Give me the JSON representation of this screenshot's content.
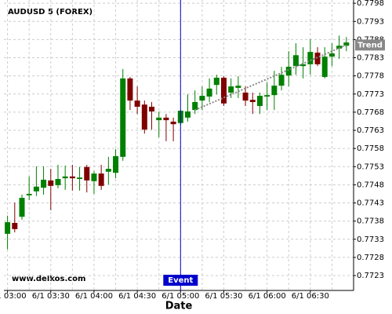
{
  "chart_data": {
    "type": "candlestick",
    "title": "AUDUSD 5 (FOREX)",
    "watermark": "www.delkos.com",
    "x_label": "Date",
    "categories": [
      "6/1 03:00",
      null,
      null,
      null,
      null,
      null,
      "6/1 03:30",
      null,
      null,
      null,
      null,
      null,
      "6/1 04:00",
      null,
      null,
      null,
      null,
      null,
      "6/1 04:30",
      null,
      null,
      null,
      null,
      null,
      "6/1 05:00",
      null,
      null,
      null,
      null,
      null,
      "6/1 05:30",
      null,
      null,
      null,
      null,
      null,
      "6/1 06:00",
      null,
      null,
      null,
      null,
      null,
      "6/1 06:30",
      null,
      null,
      null,
      null,
      null
    ],
    "open": [
      0.77345,
      0.77375,
      0.77392,
      0.77451,
      0.77462,
      0.77472,
      0.77492,
      0.77479,
      0.77498,
      0.77503,
      0.77496,
      0.77529,
      0.7749,
      0.77511,
      0.77516,
      0.77513,
      0.77557,
      0.77773,
      0.77712,
      0.77701,
      0.77695,
      0.77658,
      0.77665,
      0.77654,
      0.7765,
      0.77665,
      0.77686,
      0.77712,
      0.77723,
      0.77755,
      0.77775,
      0.77734,
      0.77747,
      0.77734,
      0.77714,
      0.77697,
      0.77723,
      0.77727,
      0.77753,
      0.77781,
      0.77807,
      0.77807,
      0.77812,
      0.77844,
      0.77777,
      0.77833,
      0.77855,
      0.77863
    ],
    "high": [
      0.77395,
      0.77431,
      0.77453,
      0.77503,
      0.77531,
      0.77531,
      0.77524,
      0.77535,
      0.77533,
      0.77535,
      0.77529,
      0.77535,
      0.77518,
      0.77535,
      0.77557,
      0.77578,
      0.77799,
      0.77777,
      0.77751,
      0.77712,
      0.77708,
      0.77682,
      0.77675,
      0.77665,
      0.77686,
      0.77729,
      0.7774,
      0.77751,
      0.77773,
      0.77783,
      0.77779,
      0.77773,
      0.77779,
      0.77751,
      0.77734,
      0.77734,
      0.77762,
      0.77794,
      0.77805,
      0.77848,
      0.7787,
      0.77859,
      0.77881,
      0.77859,
      0.77859,
      0.7787,
      0.77891,
      0.77887
    ],
    "low": [
      0.77302,
      0.77349,
      0.77384,
      0.77438,
      0.77449,
      0.77453,
      0.7741,
      0.7747,
      0.77466,
      0.77464,
      0.77464,
      0.77459,
      0.77455,
      0.77466,
      0.77481,
      0.77498,
      0.77546,
      0.77686,
      0.77675,
      0.77621,
      0.77632,
      0.77611,
      0.776,
      0.776,
      0.77643,
      0.77654,
      0.77675,
      0.77686,
      0.77708,
      0.77729,
      0.77697,
      0.77719,
      0.77719,
      0.77697,
      0.77675,
      0.77675,
      0.77686,
      0.77686,
      0.7774,
      0.77751,
      0.77783,
      0.77773,
      0.77783,
      0.77807,
      0.77773,
      0.77807,
      0.77827,
      0.77848
    ],
    "close": [
      0.77377,
      0.77358,
      0.77444,
      0.77455,
      0.77475,
      0.77494,
      0.77477,
      0.77496,
      0.77503,
      0.77498,
      0.775,
      0.77492,
      0.77511,
      0.77477,
      0.77524,
      0.77559,
      0.77773,
      0.77712,
      0.77695,
      0.77632,
      0.77682,
      0.77665,
      0.77658,
      0.77647,
      0.77684,
      0.77682,
      0.77708,
      0.77725,
      0.77745,
      0.77775,
      0.77704,
      0.77751,
      0.77753,
      0.77712,
      0.77708,
      0.77725,
      0.77727,
      0.77753,
      0.77783,
      0.77805,
      0.77837,
      0.77812,
      0.77846,
      0.77812,
      0.77833,
      0.77842,
      0.77863,
      0.77872
    ],
    "up_color": "#008000",
    "down_color": "#800000",
    "ylim": [
      0.77189,
      0.77989
    ],
    "yticks": [
      0.7723,
      0.7728,
      0.7733,
      0.7738,
      0.7743,
      0.7748,
      0.7753,
      0.7758,
      0.7763,
      0.7768,
      0.7773,
      0.7778,
      0.7783,
      0.7788,
      0.7793,
      0.7798
    ],
    "grid": true,
    "event": {
      "label": "Event",
      "index": 24,
      "color": "#0000cc"
    },
    "trend": {
      "label": "Trend",
      "points": [
        {
          "index": 26,
          "value": 0.77686
        },
        {
          "index": 47,
          "value": 0.77865
        }
      ],
      "color": "#888888"
    }
  }
}
